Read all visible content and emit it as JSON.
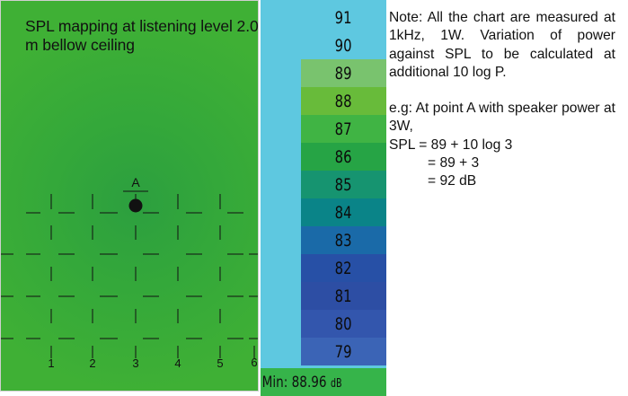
{
  "map": {
    "title": "SPL  mapping at listening level 2.0 m bellow ceiling",
    "point_label": "A",
    "axis_labels": [
      "1",
      "2",
      "3",
      "4",
      "5",
      "6"
    ],
    "colors": {
      "field": "#3aaa35",
      "center": "#2c9f3f",
      "point": "#111111"
    }
  },
  "scale": {
    "levels": [
      "91",
      "90",
      "89",
      "88",
      "87",
      "86",
      "85",
      "84",
      "83",
      "82",
      "81",
      "80",
      "79"
    ],
    "colors": [
      "#5ec8e0",
      "#5ec8e0",
      "#79c36e",
      "#68bb3a",
      "#40b444",
      "#26a445",
      "#169470",
      "#0a8488",
      "#1a6aa8",
      "#2750a6",
      "#2d4ea4",
      "#3356ad",
      "#3b64b6"
    ],
    "min_label": "Min:",
    "min_value": "88.96",
    "min_unit": "dB"
  },
  "note": {
    "intro": "Note: All the chart are measured at 1kHz, 1W. Variation of power against SPL to be calculated at additional 10 log P.",
    "example": "e.g: At point A with speaker power at 3W,",
    "calc1": "SPL = 89 + 10 log 3",
    "calc2": "= 89 + 3",
    "calc3": "= 92 dB"
  }
}
